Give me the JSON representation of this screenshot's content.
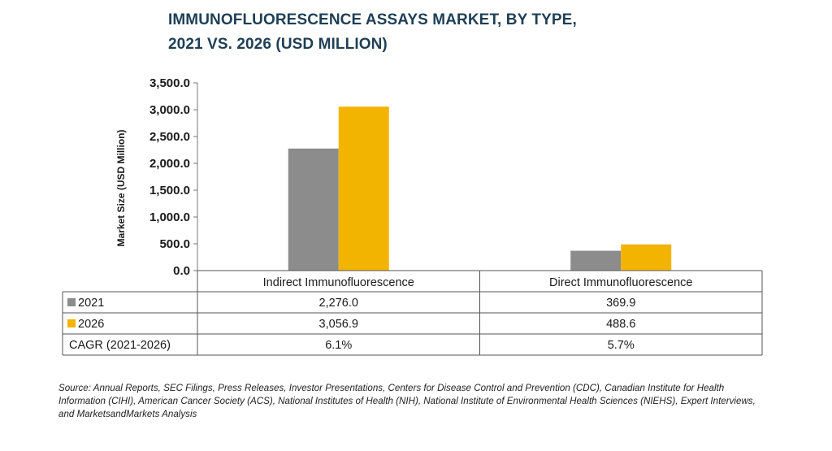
{
  "title_lines": [
    "IMMUNOFLUORESCENCE ASSAYS MARKET, BY TYPE,",
    "2021 VS. 2026 (USD MILLION)"
  ],
  "chart_data": {
    "type": "bar",
    "categories": [
      "Indirect Immunofluorescence",
      "Direct Immunofluorescence"
    ],
    "series": [
      {
        "name": "2021",
        "values": [
          2276.0,
          369.9
        ],
        "labels": [
          "2,276.0",
          "369.9"
        ],
        "color": "#8c8c8c"
      },
      {
        "name": "2026",
        "values": [
          3056.9,
          488.6
        ],
        "labels": [
          "3,056.9",
          "488.6"
        ],
        "color": "#f3b400"
      }
    ],
    "ylabel": "Market Size (USD Million)",
    "ylim": [
      0,
      3500
    ],
    "yticks": [
      0,
      500,
      1000,
      1500,
      2000,
      2500,
      3000,
      3500
    ],
    "ytick_labels": [
      "0.0",
      "500.0",
      "1,000.0",
      "1,500.0",
      "2,000.0",
      "2,500.0",
      "3,000.0",
      "3,500.0"
    ],
    "grid": false,
    "legend": "data table below chart",
    "cagr_label": "CAGR (2021-2026)",
    "cagr_values": [
      "6.1%",
      "5.7%"
    ]
  },
  "source": "Source: Annual Reports, SEC Filings, Press Releases, Investor Presentations, Centers for Disease Control and Prevention (CDC), Canadian Institute for Health Information (CIHI), American Cancer Society (ACS), National Institutes of Health (NIH), National Institute of Environmental Health Sciences (NIEHS), Expert Interviews, and MarketsandMarkets Analysis"
}
